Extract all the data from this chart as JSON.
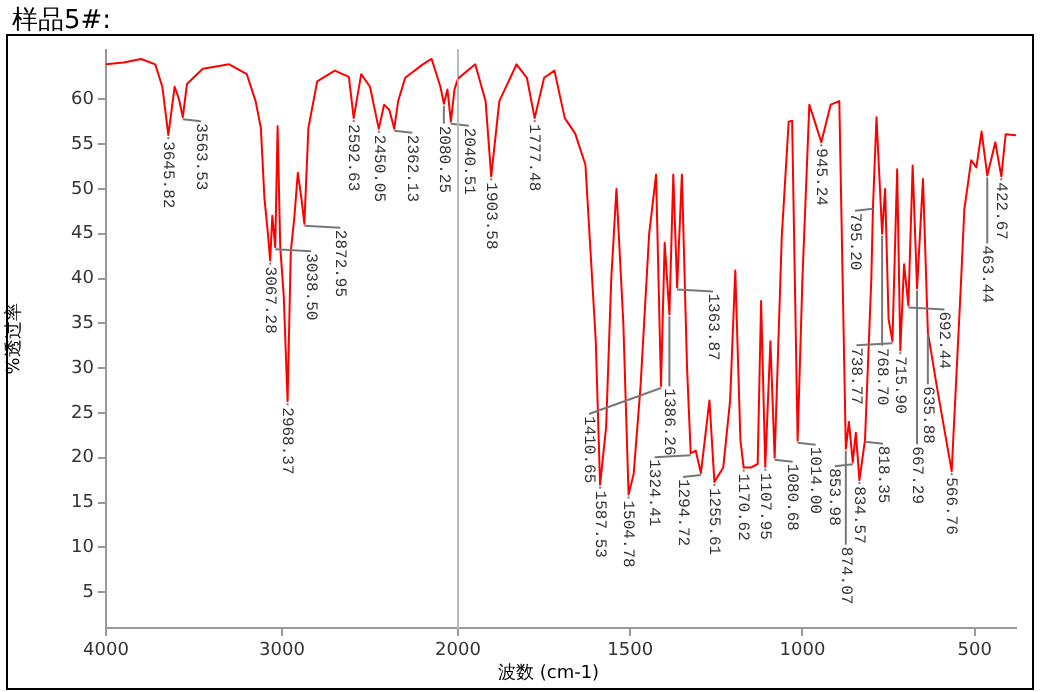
{
  "chart_data": [
    {
      "type": "line",
      "title": "样品5#:",
      "ylabel": "%透过率",
      "color": "#ff0000",
      "x": [
        4000,
        3900,
        3800,
        3720,
        3680,
        3645.82,
        3610,
        3585,
        3563.53,
        3540,
        3450,
        3300,
        3200,
        3150,
        3120,
        3100,
        3080,
        3067.28,
        3055,
        3038.5,
        3025,
        3010,
        2990,
        2968.37,
        2950,
        2930,
        2910,
        2890,
        2872.95,
        2850,
        2800,
        2700,
        2620,
        2592.63,
        2550,
        2500,
        2450.05,
        2420,
        2390,
        2362.13,
        2340,
        2300,
        2200,
        2150,
        2100,
        2080.25,
        2060,
        2040.51,
        2020,
        2000
      ],
      "values": [
        63.9,
        64.1,
        64.5,
        63.9,
        61.4,
        56,
        61.4,
        60,
        58,
        61.7,
        63.4,
        63.9,
        62.8,
        59.8,
        56.8,
        49,
        45,
        42,
        47,
        43.5,
        57,
        43.5,
        38,
        26.3,
        43,
        46.8,
        51.8,
        49,
        46.1,
        56.8,
        62,
        63.2,
        62.5,
        57.9,
        62.8,
        61.4,
        56.7,
        59.4,
        58.8,
        56.7,
        59.8,
        62.4,
        63.9,
        64.5,
        61.4,
        59.5,
        61.1,
        57.5,
        61.1,
        62.3
      ],
      "xlim": [
        4000,
        2000
      ],
      "xticks": [
        4000,
        3000,
        2000
      ],
      "ylim": [
        1,
        65.5
      ],
      "yticks": [
        5,
        10,
        15,
        20,
        25,
        30,
        35,
        40,
        45,
        50,
        55,
        60
      ],
      "annotations": [
        {
          "text": "3645.82",
          "x": 3645.82,
          "y": 56
        },
        {
          "text": "3563.53",
          "x": 3563.53,
          "y": 58
        },
        {
          "text": "3067.28",
          "x": 3067.28,
          "y": 42
        },
        {
          "text": "3038.50",
          "x": 3038.5,
          "y": 43.5
        },
        {
          "text": "2968.37",
          "x": 2968.37,
          "y": 26.3
        },
        {
          "text": "2872.95",
          "x": 2872.95,
          "y": 46.1
        },
        {
          "text": "2592.63",
          "x": 2592.63,
          "y": 57.9
        },
        {
          "text": "2450.05",
          "x": 2450.05,
          "y": 56.7
        },
        {
          "text": "2362.13",
          "x": 2362.13,
          "y": 56.7
        },
        {
          "text": "2080.25",
          "x": 2080.25,
          "y": 59.5
        },
        {
          "text": "2040.51",
          "x": 2040.51,
          "y": 57.5
        }
      ]
    },
    {
      "type": "line",
      "xlabel": "波数 (cm-1)",
      "color": "#ff0000",
      "x": [
        2000,
        1950,
        1920,
        1903.58,
        1880,
        1830,
        1800,
        1777.48,
        1750,
        1720,
        1690,
        1660,
        1630,
        1600,
        1587.53,
        1570,
        1555,
        1540,
        1520,
        1504.78,
        1490,
        1470,
        1445,
        1425,
        1410.65,
        1400,
        1386.26,
        1375,
        1363.87,
        1350,
        1335,
        1324.41,
        1310,
        1294.72,
        1270,
        1255.61,
        1230,
        1210,
        1195,
        1180,
        1170.62,
        1150,
        1130,
        1120,
        1107.95,
        1093,
        1080.68,
        1060,
        1040,
        1030,
        1014,
        1000,
        980,
        960,
        945.24,
        918,
        893,
        874.07,
        865,
        853.98,
        845,
        834.57,
        818.35,
        800,
        795.2,
        785,
        768.7,
        760,
        750,
        738.77,
        725,
        715.9,
        705,
        692.44,
        680,
        667.29,
        650,
        635.88,
        610,
        566.76,
        540,
        530,
        510,
        495,
        480,
        463.44,
        440,
        422.67,
        410,
        380
      ],
      "values": [
        62.3,
        63.9,
        59.8,
        51.4,
        59.8,
        63.9,
        62.4,
        57.9,
        62.4,
        63.2,
        57.9,
        56.2,
        52.7,
        33,
        17,
        23.4,
        40,
        50,
        35,
        15.9,
        18.2,
        28,
        45,
        51.6,
        28,
        44,
        36,
        51.6,
        39,
        51.6,
        30,
        20.5,
        20.8,
        18.3,
        26.4,
        17.3,
        18.9,
        26.4,
        40.9,
        21.9,
        18.9,
        18.9,
        19.3,
        37.5,
        19,
        33,
        20,
        44.7,
        57.5,
        57.6,
        21.9,
        40,
        59.4,
        57,
        55.2,
        59.4,
        59.8,
        21,
        24,
        19.5,
        22.8,
        17.5,
        22,
        40,
        48,
        58,
        45,
        50,
        35.5,
        33,
        52.2,
        32,
        41.6,
        37,
        52.6,
        38.9,
        51.1,
        34,
        28,
        18.5,
        39.3,
        47.7,
        53.2,
        52.4,
        56.4,
        51.5,
        55.2,
        51.4,
        56.1,
        56
      ],
      "xlim": [
        2000,
        380
      ],
      "xticks": [
        1500,
        1000,
        500
      ],
      "ylim": [
        1,
        65.5
      ],
      "yticks": [
        5,
        10,
        15,
        20,
        25,
        30,
        35,
        40,
        45,
        50,
        55,
        60
      ],
      "tick_labels": "x",
      "annotations": [
        {
          "text": "1903.58",
          "x": 1903.58,
          "y": 51.4
        },
        {
          "text": "1777.48",
          "x": 1777.48,
          "y": 57.9
        },
        {
          "text": "1587.53",
          "x": 1587.53,
          "y": 17
        },
        {
          "text": "1504.78",
          "x": 1504.78,
          "y": 15.9
        },
        {
          "text": "1410.65",
          "x": 1410.65,
          "y": 28
        },
        {
          "text": "1386.26",
          "x": 1386.26,
          "y": 36
        },
        {
          "text": "1363.87",
          "x": 1363.87,
          "y": 39
        },
        {
          "text": "1324.41",
          "x": 1324.41,
          "y": 20.5
        },
        {
          "text": "1294.72",
          "x": 1294.72,
          "y": 18.3
        },
        {
          "text": "1255.61",
          "x": 1255.61,
          "y": 17.3
        },
        {
          "text": "1170.62",
          "x": 1170.62,
          "y": 18.9
        },
        {
          "text": "1107.95",
          "x": 1107.95,
          "y": 19
        },
        {
          "text": "1080.68",
          "x": 1080.68,
          "y": 20
        },
        {
          "text": "1014.00",
          "x": 1014,
          "y": 21.9
        },
        {
          "text": "945.24",
          "x": 945.24,
          "y": 55.2
        },
        {
          "text": "874.07",
          "x": 874.07,
          "y": 21
        },
        {
          "text": "853.98",
          "x": 853.98,
          "y": 19.5
        },
        {
          "text": "834.57",
          "x": 834.57,
          "y": 17.5
        },
        {
          "text": "818.35",
          "x": 818.35,
          "y": 22
        },
        {
          "text": "795.20",
          "x": 795.2,
          "y": 48
        },
        {
          "text": "768.70",
          "x": 768.7,
          "y": 45
        },
        {
          "text": "738.77",
          "x": 738.77,
          "y": 33
        },
        {
          "text": "715.90",
          "x": 715.9,
          "y": 32
        },
        {
          "text": "692.44",
          "x": 692.44,
          "y": 37
        },
        {
          "text": "667.29",
          "x": 667.29,
          "y": 38.9
        },
        {
          "text": "635.88",
          "x": 635.88,
          "y": 34
        },
        {
          "text": "566.76",
          "x": 566.76,
          "y": 18.5
        },
        {
          "text": "463.44",
          "x": 463.44,
          "y": 51.5
        },
        {
          "text": "422.67",
          "x": 422.67,
          "y": 51.4
        }
      ]
    }
  ]
}
